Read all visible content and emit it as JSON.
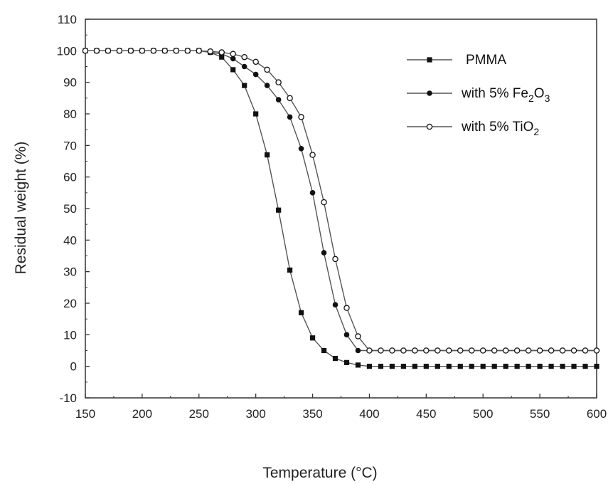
{
  "chart_data": {
    "type": "line",
    "title": "",
    "xlabel": "Temperature (°C)",
    "ylabel": "Residual weight (%)",
    "xlim": [
      150,
      600
    ],
    "ylim": [
      -10,
      110
    ],
    "xticks": [
      150,
      200,
      250,
      300,
      350,
      400,
      450,
      500,
      550,
      600
    ],
    "yticks": [
      -10,
      0,
      10,
      20,
      30,
      40,
      50,
      60,
      70,
      80,
      90,
      100,
      110
    ],
    "grid": false,
    "legend_position": "top-right",
    "series": [
      {
        "name": "PMMA",
        "marker": "filled-square",
        "color": "#111111",
        "x": [
          150,
          160,
          170,
          180,
          190,
          200,
          210,
          220,
          230,
          240,
          250,
          260,
          270,
          280,
          290,
          300,
          310,
          320,
          330,
          340,
          350,
          360,
          370,
          380,
          390,
          400,
          410,
          420,
          430,
          440,
          450,
          460,
          470,
          480,
          490,
          500,
          510,
          520,
          530,
          540,
          550,
          560,
          570,
          580,
          590,
          600
        ],
        "y": [
          100,
          100,
          100,
          100,
          100,
          100,
          100,
          100,
          100,
          100,
          100,
          99.5,
          98,
          94,
          89,
          80,
          67,
          49.5,
          30.5,
          17,
          9,
          5,
          2.5,
          1.2,
          0.4,
          0,
          0,
          0,
          0,
          0,
          0,
          0,
          0,
          0,
          0,
          0,
          0,
          0,
          0,
          0,
          0,
          0,
          0,
          0,
          0,
          0
        ]
      },
      {
        "name": "with 5% Fe2O3",
        "name_parts": [
          "with 5% Fe",
          "2",
          "O",
          "3"
        ],
        "marker": "filled-circle",
        "color": "#111111",
        "x": [
          150,
          160,
          170,
          180,
          190,
          200,
          210,
          220,
          230,
          240,
          250,
          260,
          270,
          280,
          290,
          300,
          310,
          320,
          330,
          340,
          350,
          360,
          370,
          380,
          390,
          400,
          410,
          420,
          430,
          440,
          450,
          460,
          470,
          480,
          490,
          500,
          510,
          520,
          530,
          540,
          550,
          560,
          570,
          580,
          590,
          600
        ],
        "y": [
          100,
          100,
          100,
          100,
          100,
          100,
          100,
          100,
          100,
          100,
          100,
          99.5,
          99,
          97.5,
          95,
          92.5,
          89,
          84.5,
          79,
          69,
          55,
          36,
          19.5,
          10,
          5,
          5,
          5,
          5,
          5,
          5,
          5,
          5,
          5,
          5,
          5,
          5,
          5,
          5,
          5,
          5,
          5,
          5,
          5,
          5,
          5,
          5
        ]
      },
      {
        "name": "with 5% TiO2",
        "name_parts": [
          "with 5% TiO",
          "2"
        ],
        "marker": "open-circle",
        "color": "#111111",
        "x": [
          150,
          160,
          170,
          180,
          190,
          200,
          210,
          220,
          230,
          240,
          250,
          260,
          270,
          280,
          290,
          300,
          310,
          320,
          330,
          340,
          350,
          360,
          370,
          380,
          390,
          400,
          410,
          420,
          430,
          440,
          450,
          460,
          470,
          480,
          490,
          500,
          510,
          520,
          530,
          540,
          550,
          560,
          570,
          580,
          590,
          600
        ],
        "y": [
          100,
          100,
          100,
          100,
          100,
          100,
          100,
          100,
          100,
          100,
          100,
          99.8,
          99.5,
          99,
          98,
          96.5,
          94,
          90,
          85,
          79,
          67,
          52,
          34,
          18.5,
          9.5,
          5,
          5,
          5,
          5,
          5,
          5,
          5,
          5,
          5,
          5,
          5,
          5,
          5,
          5,
          5,
          5,
          5,
          5,
          5,
          5,
          5
        ]
      }
    ]
  }
}
